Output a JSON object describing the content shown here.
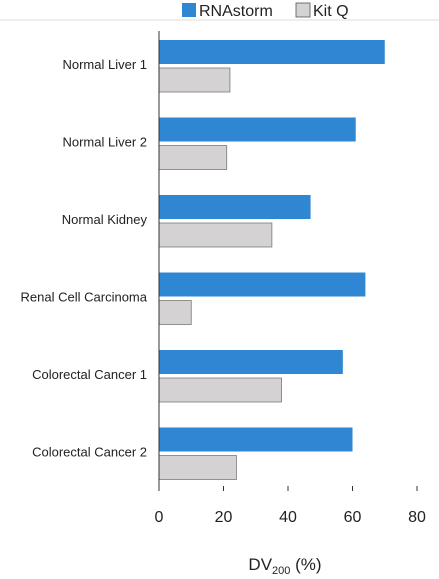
{
  "chart_data": {
    "type": "bar",
    "orientation": "horizontal",
    "categories": [
      "Normal Liver 1",
      "Normal Liver 2",
      "Normal Kidney",
      "Renal Cell Carcinoma",
      "Colorectal Cancer 1",
      "Colorectal Cancer 2"
    ],
    "series": [
      {
        "name": "RNAstorm",
        "color": "#2f87d3",
        "values": [
          70,
          61,
          47,
          64,
          57,
          60
        ]
      },
      {
        "name": "Kit Q",
        "color": "#d4d2d3",
        "values": [
          22,
          21,
          35,
          10,
          38,
          24
        ]
      }
    ],
    "xlabel_main": "DV",
    "xlabel_sub": "200",
    "xlabel_suffix": " (%)",
    "xticks": [
      "0",
      "20",
      "40",
      "60",
      "80"
    ],
    "xlim": [
      0,
      80
    ],
    "legend_position": "top",
    "grid": false
  }
}
